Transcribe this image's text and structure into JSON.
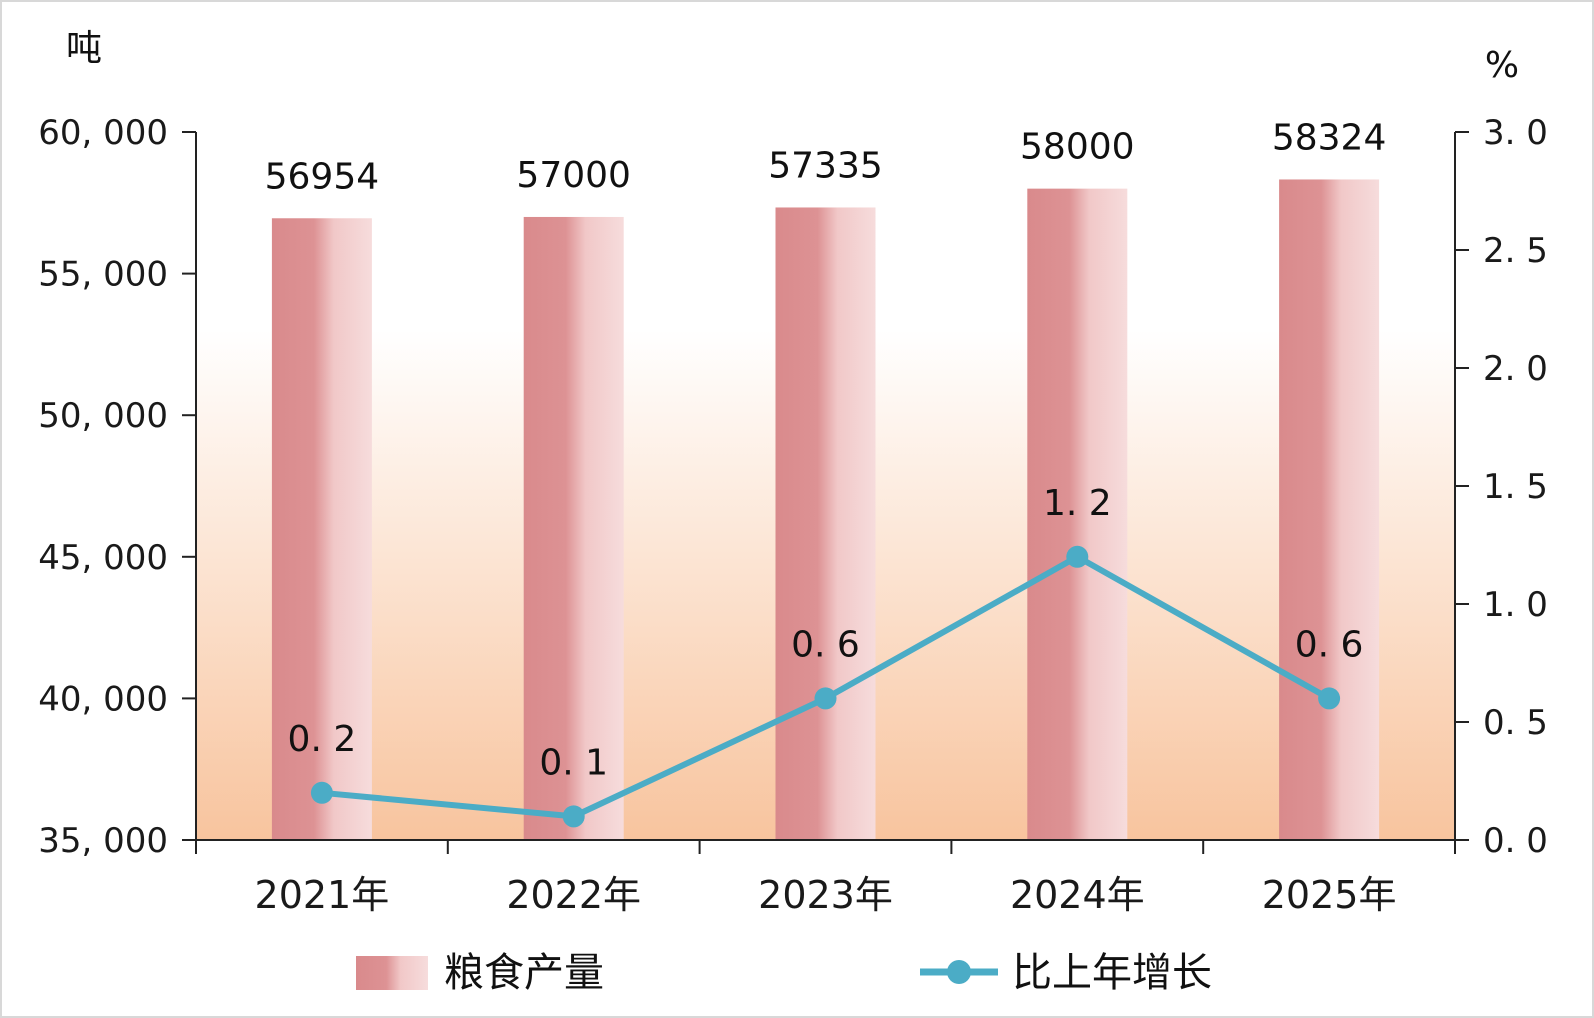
{
  "chart_data": {
    "type": "bar",
    "categories": [
      "2021年",
      "2022年",
      "2023年",
      "2024年",
      "2025年"
    ],
    "series": [
      {
        "name": "粮食产量",
        "type": "bar",
        "axis": "left",
        "values": [
          56954,
          57000,
          57335,
          58000,
          58324
        ],
        "data_labels": [
          "56954",
          "57000",
          "57335",
          "58000",
          "58324"
        ],
        "color": "#d9868a"
      },
      {
        "name": "比上年增长",
        "type": "line",
        "axis": "right",
        "values": [
          0.2,
          0.1,
          0.6,
          1.2,
          0.6
        ],
        "data_labels": [
          "0. 2",
          "0. 1",
          "0. 6",
          "1. 2",
          "0. 6"
        ],
        "color": "#4bacc6"
      }
    ],
    "left_axis": {
      "unit": "吨",
      "ylim": [
        35000,
        60000
      ],
      "ticks": [
        35000,
        40000,
        45000,
        50000,
        55000,
        60000
      ],
      "tick_labels": [
        "35, 000",
        "40, 000",
        "45, 000",
        "50, 000",
        "55, 000",
        "60, 000"
      ]
    },
    "right_axis": {
      "unit": "%",
      "ylim": [
        0,
        3
      ],
      "ticks": [
        0,
        0.5,
        1,
        1.5,
        2,
        2.5,
        3
      ],
      "tick_labels": [
        "0. 0",
        "0. 5",
        "1. 0",
        "1. 5",
        "2. 0",
        "2. 5",
        "3. 0"
      ]
    },
    "legend": {
      "position": "bottom",
      "items": [
        "粮食产量",
        "比上年增长"
      ]
    },
    "background_gradient": [
      "#ffffff",
      "#f8c49e"
    ]
  }
}
